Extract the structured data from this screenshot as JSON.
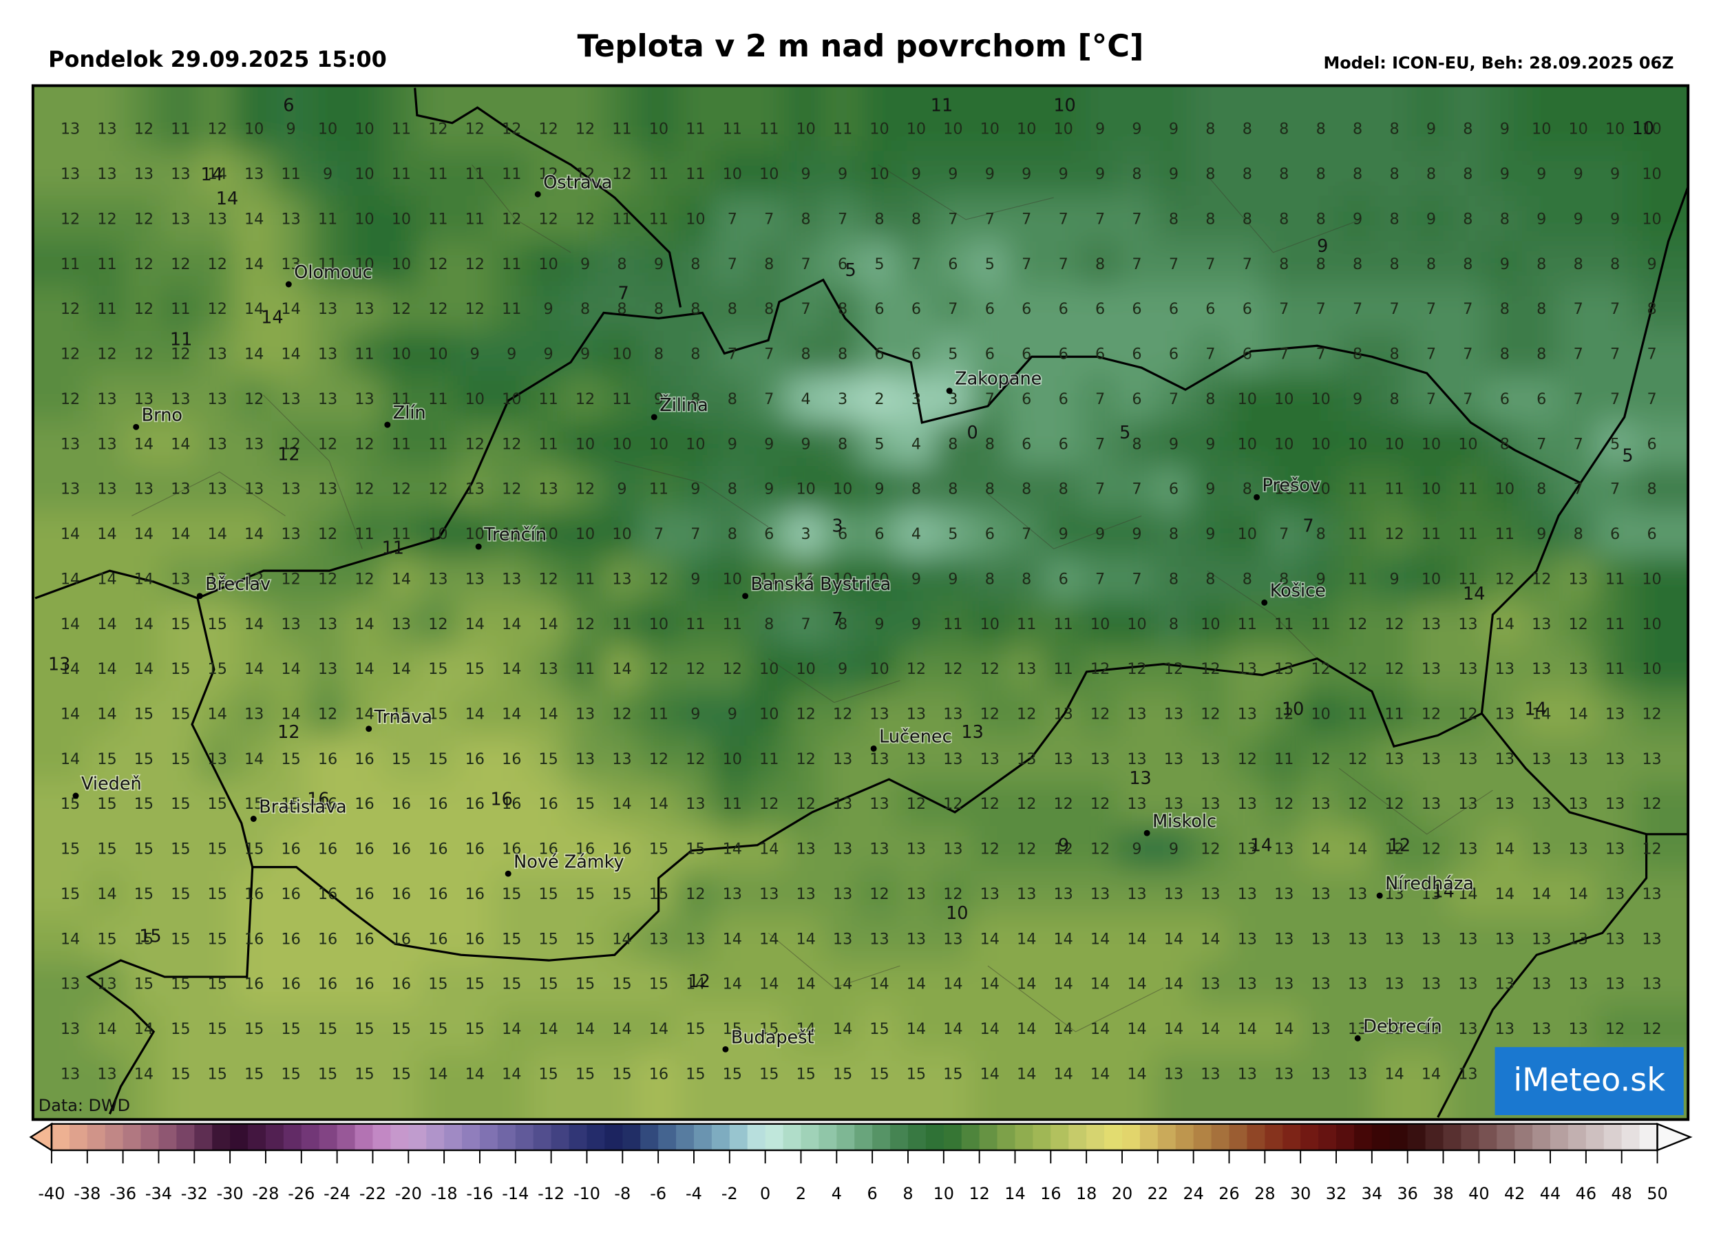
{
  "header": {
    "left": "Pondelok 29.09.2025 15:00",
    "title": "Teplota v 2 m nad povrchom [°C]",
    "right": "Model: ICON-EU, Beh: 28.09.2025 06Z"
  },
  "grid": [
    [
      13,
      13,
      12,
      11,
      12,
      10,
      9,
      10,
      10,
      11,
      12,
      12,
      12,
      12,
      12,
      11,
      10,
      11,
      11,
      11,
      10,
      11,
      10,
      10,
      10,
      10,
      10,
      10,
      9,
      9,
      9,
      8,
      8,
      8,
      8,
      8,
      8,
      9,
      8,
      9,
      10,
      10,
      10,
      10
    ],
    [
      13,
      13,
      13,
      13,
      14,
      13,
      11,
      9,
      10,
      11,
      11,
      11,
      11,
      12,
      12,
      12,
      11,
      11,
      10,
      10,
      9,
      9,
      10,
      9,
      9,
      9,
      9,
      9,
      9,
      8,
      9,
      8,
      8,
      8,
      8,
      8,
      8,
      8,
      8,
      9,
      9,
      9,
      9,
      10
    ],
    [
      12,
      12,
      12,
      13,
      13,
      14,
      13,
      11,
      10,
      10,
      11,
      11,
      12,
      12,
      12,
      11,
      11,
      10,
      7,
      7,
      8,
      7,
      8,
      8,
      7,
      7,
      7,
      7,
      7,
      7,
      8,
      8,
      8,
      8,
      8,
      9,
      8,
      9,
      8,
      8,
      9,
      9,
      9,
      10
    ],
    [
      11,
      11,
      12,
      12,
      12,
      14,
      13,
      11,
      10,
      10,
      12,
      12,
      11,
      10,
      9,
      8,
      9,
      8,
      7,
      8,
      7,
      6,
      5,
      7,
      6,
      5,
      7,
      7,
      8,
      7,
      7,
      7,
      7,
      8,
      8,
      8,
      8,
      8,
      8,
      9,
      8,
      8,
      8,
      9
    ],
    [
      12,
      11,
      12,
      11,
      12,
      14,
      14,
      13,
      13,
      12,
      12,
      12,
      11,
      9,
      8,
      8,
      8,
      8,
      8,
      8,
      7,
      8,
      6,
      6,
      7,
      6,
      6,
      6,
      6,
      6,
      6,
      6,
      6,
      7,
      7,
      7,
      7,
      7,
      7,
      8,
      8,
      7,
      7,
      8
    ],
    [
      12,
      12,
      12,
      12,
      13,
      14,
      14,
      13,
      11,
      10,
      10,
      9,
      9,
      9,
      9,
      10,
      8,
      8,
      7,
      7,
      8,
      8,
      6,
      6,
      5,
      6,
      6,
      6,
      6,
      6,
      6,
      7,
      6,
      7,
      7,
      8,
      8,
      7,
      7,
      8,
      8,
      7,
      7,
      7
    ],
    [
      12,
      13,
      13,
      13,
      13,
      12,
      13,
      13,
      13,
      11,
      11,
      10,
      10,
      11,
      12,
      11,
      9,
      8,
      8,
      7,
      4,
      3,
      2,
      3,
      3,
      7,
      6,
      6,
      7,
      6,
      7,
      8,
      10,
      10,
      10,
      9,
      8,
      7,
      7,
      6,
      6,
      7,
      7,
      7
    ],
    [
      13,
      13,
      14,
      14,
      13,
      13,
      12,
      12,
      12,
      11,
      11,
      12,
      12,
      11,
      10,
      10,
      10,
      10,
      9,
      9,
      9,
      8,
      5,
      4,
      8,
      8,
      6,
      6,
      7,
      8,
      9,
      9,
      10,
      10,
      10,
      10,
      10,
      10,
      10,
      8,
      7,
      7,
      5,
      6
    ],
    [
      13,
      13,
      13,
      13,
      13,
      13,
      13,
      13,
      12,
      12,
      12,
      13,
      12,
      13,
      12,
      9,
      11,
      9,
      8,
      9,
      10,
      10,
      9,
      8,
      8,
      8,
      8,
      8,
      7,
      7,
      6,
      9,
      8,
      10,
      10,
      11,
      11,
      10,
      11,
      10,
      8,
      7,
      7,
      8
    ],
    [
      14,
      14,
      14,
      14,
      14,
      14,
      13,
      12,
      11,
      11,
      10,
      10,
      11,
      10,
      10,
      10,
      7,
      7,
      8,
      6,
      3,
      6,
      6,
      4,
      5,
      6,
      7,
      9,
      9,
      9,
      8,
      9,
      10,
      7,
      8,
      11,
      12,
      11,
      11,
      11,
      9,
      8,
      6,
      6
    ],
    [
      14,
      14,
      14,
      13,
      13,
      12,
      12,
      12,
      12,
      14,
      13,
      13,
      13,
      12,
      11,
      13,
      12,
      9,
      10,
      11,
      11,
      10,
      10,
      9,
      9,
      8,
      8,
      6,
      7,
      7,
      8,
      8,
      8,
      8,
      9,
      11,
      9,
      10,
      11,
      12,
      12,
      13,
      11,
      10
    ],
    [
      14,
      14,
      14,
      15,
      15,
      14,
      13,
      13,
      14,
      13,
      12,
      14,
      14,
      14,
      12,
      11,
      10,
      11,
      11,
      8,
      7,
      8,
      9,
      9,
      11,
      10,
      11,
      11,
      10,
      10,
      8,
      10,
      11,
      11,
      11,
      12,
      12,
      13,
      13,
      14,
      13,
      12,
      11,
      10
    ],
    [
      14,
      14,
      14,
      15,
      15,
      14,
      14,
      13,
      14,
      14,
      15,
      15,
      14,
      13,
      11,
      14,
      12,
      12,
      12,
      10,
      10,
      9,
      10,
      12,
      12,
      12,
      13,
      11,
      12,
      12,
      12,
      12,
      13,
      13,
      12,
      12,
      12,
      13,
      13,
      13,
      13,
      13,
      11,
      10
    ],
    [
      14,
      14,
      15,
      15,
      14,
      13,
      14,
      12,
      14,
      15,
      15,
      14,
      14,
      14,
      13,
      12,
      11,
      9,
      9,
      10,
      12,
      12,
      13,
      13,
      13,
      12,
      12,
      13,
      12,
      13,
      13,
      12,
      13,
      12,
      10,
      11,
      11,
      12,
      12,
      13,
      14,
      14,
      13,
      12
    ],
    [
      14,
      15,
      15,
      15,
      13,
      14,
      15,
      16,
      16,
      15,
      15,
      16,
      16,
      15,
      13,
      13,
      12,
      12,
      10,
      11,
      12,
      13,
      13,
      13,
      13,
      13,
      13,
      13,
      13,
      13,
      13,
      13,
      12,
      11,
      12,
      12,
      13,
      13,
      13,
      13,
      13,
      13,
      13,
      13
    ],
    [
      15,
      15,
      15,
      15,
      15,
      15,
      15,
      16,
      16,
      16,
      16,
      16,
      16,
      16,
      15,
      14,
      14,
      13,
      11,
      12,
      12,
      13,
      13,
      12,
      12,
      12,
      12,
      12,
      12,
      13,
      13,
      13,
      13,
      12,
      13,
      12,
      12,
      13,
      13,
      13,
      13,
      13,
      13,
      12
    ],
    [
      15,
      15,
      15,
      15,
      15,
      15,
      16,
      16,
      16,
      16,
      16,
      16,
      16,
      16,
      16,
      16,
      15,
      15,
      14,
      14,
      13,
      13,
      13,
      13,
      13,
      12,
      12,
      12,
      12,
      9,
      9,
      12,
      13,
      13,
      14,
      14,
      12,
      12,
      13,
      14,
      13,
      13,
      13,
      12
    ],
    [
      15,
      14,
      15,
      15,
      15,
      16,
      16,
      16,
      16,
      16,
      16,
      16,
      15,
      15,
      15,
      15,
      15,
      12,
      13,
      13,
      13,
      13,
      12,
      13,
      12,
      13,
      13,
      13,
      13,
      13,
      13,
      13,
      13,
      13,
      13,
      13,
      13,
      13,
      14,
      14,
      14,
      14,
      13,
      13
    ],
    [
      14,
      15,
      15,
      15,
      15,
      16,
      16,
      16,
      16,
      16,
      16,
      16,
      15,
      15,
      15,
      14,
      13,
      13,
      14,
      14,
      14,
      13,
      13,
      13,
      13,
      14,
      14,
      14,
      14,
      14,
      14,
      14,
      13,
      13,
      13,
      13,
      13,
      13,
      13,
      13,
      13,
      13,
      13,
      13
    ],
    [
      13,
      13,
      15,
      15,
      15,
      16,
      16,
      16,
      16,
      16,
      15,
      15,
      15,
      15,
      15,
      15,
      15,
      14,
      14,
      14,
      14,
      14,
      14,
      14,
      14,
      14,
      14,
      14,
      14,
      14,
      14,
      13,
      13,
      13,
      13,
      13,
      13,
      13,
      13,
      13,
      13,
      13,
      13,
      13
    ],
    [
      13,
      14,
      14,
      15,
      15,
      15,
      15,
      15,
      15,
      15,
      15,
      15,
      14,
      14,
      14,
      14,
      14,
      15,
      15,
      15,
      14,
      14,
      15,
      14,
      14,
      14,
      14,
      14,
      14,
      14,
      14,
      14,
      14,
      14,
      13,
      13,
      13,
      13,
      13,
      13,
      13,
      13,
      12,
      12
    ],
    [
      13,
      13,
      14,
      15,
      15,
      15,
      15,
      15,
      15,
      15,
      14,
      14,
      14,
      15,
      15,
      15,
      16,
      15,
      15,
      15,
      15,
      15,
      15,
      15,
      15,
      14,
      14,
      14,
      14,
      14,
      13,
      13,
      13,
      13,
      13,
      13,
      14,
      14,
      13,
      13,
      13,
      13,
      13,
      13
    ]
  ],
  "contour_labels": [
    6,
    11,
    10,
    10,
    14,
    14,
    9,
    7,
    14,
    11,
    5,
    12,
    0,
    5,
    5,
    3,
    7,
    11,
    7,
    14,
    13,
    12,
    10,
    14,
    13,
    16,
    16,
    13,
    9,
    14,
    12,
    10,
    14,
    15,
    12
  ],
  "cities": [
    "Ostrava",
    "Olomouc",
    "Brno",
    "Zlín",
    "Žilina",
    "Zakopane",
    "Prešov",
    "Trenčín",
    "Břeclav",
    "Banská Bystrica",
    "Košice",
    "Trnava",
    "Lučenec",
    "Viedeň",
    "Bratislava",
    "Miskolc",
    "Nové Zámky",
    "Níredháza",
    "Budapešť",
    "Debrecín"
  ],
  "source": "Data: DWD",
  "logo": "iMeteo.sk",
  "colorbar": {
    "ticks": [
      -40,
      -38,
      -36,
      -34,
      -32,
      -30,
      -28,
      -26,
      -24,
      -22,
      -20,
      -18,
      -16,
      -14,
      -12,
      -10,
      -8,
      -6,
      -4,
      -2,
      0,
      2,
      4,
      6,
      8,
      10,
      12,
      14,
      16,
      18,
      20,
      22,
      24,
      26,
      28,
      30,
      32,
      34,
      36,
      38,
      40,
      42,
      44,
      46,
      48,
      50
    ],
    "colors": [
      "#f4b894",
      "#d89a8a",
      "#b98084",
      "#9a6078",
      "#6e3a60",
      "#2c0828",
      "#4a1a48",
      "#6a3070",
      "#8a4a8a",
      "#c080c0",
      "#c8a0d0",
      "#a890c8",
      "#8878b8",
      "#6860a0",
      "#4a4888",
      "#283070",
      "#18205a",
      "#3a5888",
      "#6088a8",
      "#88b8c8",
      "#c8ece4",
      "#a8d8c0",
      "#88c0a0",
      "#5e9c70",
      "#3c7c48",
      "#2a6e30",
      "#5a8c40",
      "#88a84c",
      "#a8bc58",
      "#d0d070",
      "#e8e070",
      "#d0b460",
      "#b88c48",
      "#a06838",
      "#8a3a20",
      "#781c14",
      "#601010",
      "#3c0404",
      "#300808",
      "#502828",
      "#704848",
      "#907070",
      "#b09898",
      "#c8b8b8",
      "#e0d8d8",
      "#f8f8f8"
    ]
  }
}
